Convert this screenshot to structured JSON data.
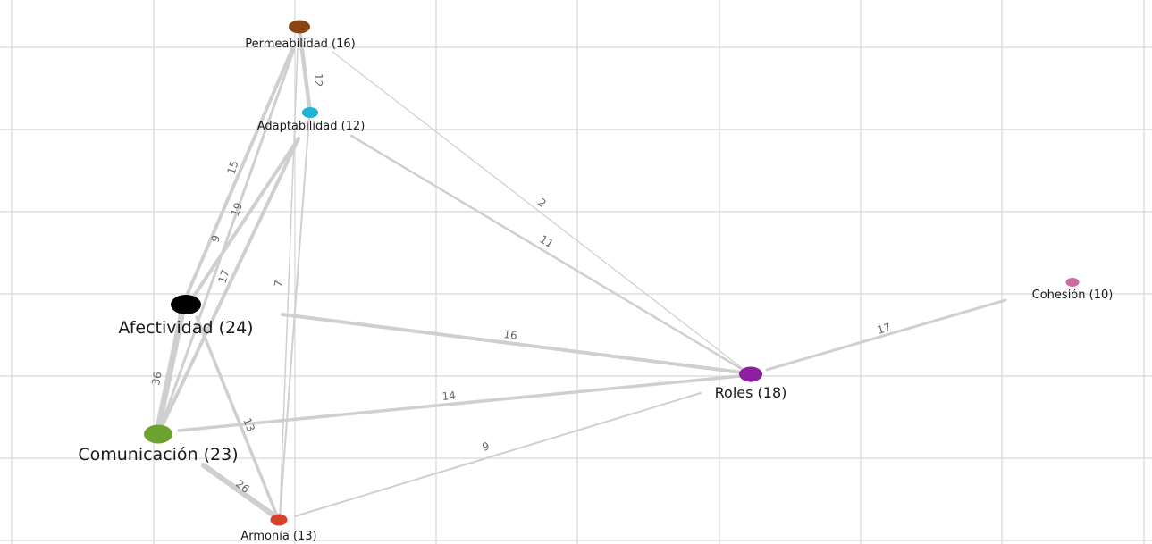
{
  "nodes": {
    "permeabilidad": {
      "label": "Permeabilidad (16)",
      "color": "#8B4513"
    },
    "adaptabilidad": {
      "label": "Adaptabilidad (12)",
      "color": "#1FB6D4"
    },
    "afectividad": {
      "label": "Afectividad (24)",
      "color": "#000000"
    },
    "comunicacion": {
      "label": "Comunicación (23)",
      "color": "#6BA32E"
    },
    "armonia": {
      "label": "Armonia (13)",
      "color": "#D9412B"
    },
    "roles": {
      "label": "Roles (18)",
      "color": "#8E1FA0"
    },
    "cohesion": {
      "label": "Cohesión (10)",
      "color": "#C96E9E"
    }
  },
  "edges": [
    {
      "from": "Permeabilidad",
      "to": "Adaptabilidad",
      "weight": "12"
    },
    {
      "from": "Permeabilidad",
      "to": "Afectividad",
      "weight": "15"
    },
    {
      "from": "Permeabilidad",
      "to": "Comunicación",
      "weight": "9"
    },
    {
      "from": "Permeabilidad",
      "to": "Roles",
      "weight": "2"
    },
    {
      "from": "Adaptabilidad",
      "to": "Afectividad",
      "weight": "19"
    },
    {
      "from": "Adaptabilidad",
      "to": "Comunicación",
      "weight": "17"
    },
    {
      "from": "Adaptabilidad",
      "to": "Armonia",
      "weight": "7"
    },
    {
      "from": "Adaptabilidad",
      "to": "Roles",
      "weight": "11"
    },
    {
      "from": "Afectividad",
      "to": "Comunicación",
      "weight": "36"
    },
    {
      "from": "Afectividad",
      "to": "Armonia",
      "weight": "13"
    },
    {
      "from": "Afectividad",
      "to": "Roles",
      "weight": "16"
    },
    {
      "from": "Comunicación",
      "to": "Roles",
      "weight": "14"
    },
    {
      "from": "Comunicación",
      "to": "Armonia",
      "weight": "26"
    },
    {
      "from": "Armonia",
      "to": "Roles",
      "weight": "9"
    },
    {
      "from": "Roles",
      "to": "Cohesión",
      "weight": "17"
    }
  ]
}
